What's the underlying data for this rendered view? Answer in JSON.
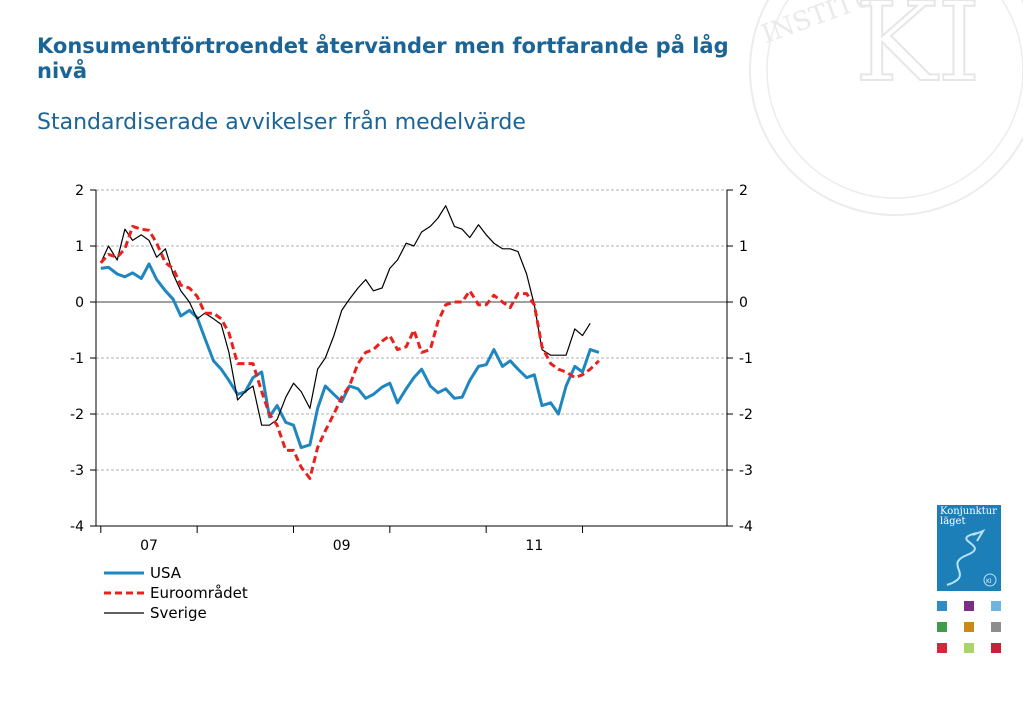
{
  "header": {
    "title": "Konsumentförtroendet återvänder men fortfarande på låg nivå",
    "subtitle": "Standardiserade avvikelser från medelvärde"
  },
  "seal": {
    "text": "INSTITUTET",
    "monogram": "KI"
  },
  "cover": {
    "title_line1": "Konjunktur",
    "title_line2": "läget",
    "badge": "KI"
  },
  "colors": {
    "title": "#1a6496",
    "usa": "#1f86c0",
    "euro": "#e8211d",
    "sverige": "#000000",
    "cover": "#1c7fb8",
    "squares": [
      "#2e8bc6",
      "#7b2e84",
      "#6fb4de",
      "#3f9d4a",
      "#c98a18",
      "#8d8d8d",
      "#d1283a",
      "#a9d36b",
      "#c62139"
    ]
  },
  "chart_data": {
    "type": "line",
    "xlabel": "",
    "ylabel": "",
    "xlim": [
      2006.45,
      2013.0
    ],
    "ylim": [
      -4,
      2
    ],
    "yticks": [
      -4,
      -3,
      -2,
      -1,
      0,
      1,
      2
    ],
    "ytick_labels": [
      "-4",
      "-3",
      "-2",
      "-1",
      "0",
      "1",
      "2"
    ],
    "xtick_labels": [
      {
        "x": 2007.0,
        "label": "07"
      },
      {
        "x": 2009.0,
        "label": "09"
      },
      {
        "x": 2011.0,
        "label": "11"
      }
    ],
    "grid": true,
    "secondary_y_axis": true,
    "legend_position": "bottom-left",
    "series": [
      {
        "name": "USA",
        "style": "solid-thick",
        "x": [
          2006.5,
          2006.58,
          2006.67,
          2006.75,
          2006.83,
          2006.92,
          2007.0,
          2007.08,
          2007.17,
          2007.25,
          2007.33,
          2007.42,
          2007.5,
          2007.58,
          2007.67,
          2007.75,
          2007.83,
          2007.92,
          2008.0,
          2008.08,
          2008.17,
          2008.25,
          2008.33,
          2008.42,
          2008.5,
          2008.58,
          2008.67,
          2008.75,
          2008.83,
          2008.92,
          2009.0,
          2009.08,
          2009.17,
          2009.25,
          2009.33,
          2009.42,
          2009.5,
          2009.58,
          2009.67,
          2009.75,
          2009.83,
          2009.92,
          2010.0,
          2010.08,
          2010.17,
          2010.25,
          2010.33,
          2010.42,
          2010.5,
          2010.58,
          2010.67,
          2010.75,
          2010.83,
          2010.92,
          2011.0,
          2011.08,
          2011.17,
          2011.25,
          2011.33,
          2011.42,
          2011.5,
          2011.58,
          2011.67,
          2011.75
        ],
        "values": [
          0.6,
          0.62,
          0.5,
          0.45,
          0.52,
          0.42,
          0.68,
          0.4,
          0.2,
          0.05,
          -0.25,
          -0.15,
          -0.28,
          -0.65,
          -1.05,
          -1.2,
          -1.4,
          -1.65,
          -1.6,
          -1.35,
          -1.25,
          -2.05,
          -1.85,
          -2.15,
          -2.2,
          -2.6,
          -2.55,
          -1.9,
          -1.5,
          -1.65,
          -1.78,
          -1.5,
          -1.55,
          -1.72,
          -1.65,
          -1.52,
          -1.45,
          -1.8,
          -1.55,
          -1.35,
          -1.2,
          -1.5,
          -1.62,
          -1.55,
          -1.72,
          -1.7,
          -1.4,
          -1.15,
          -1.12,
          -0.85,
          -1.15,
          -1.05,
          -1.2,
          -1.35,
          -1.3,
          -1.85,
          -1.8,
          -2.0,
          -1.5,
          -1.15,
          -1.25,
          -0.85,
          -0.9,
          null
        ]
      },
      {
        "name": "Euroområdet",
        "style": "dashed",
        "x": [
          2006.5,
          2006.58,
          2006.67,
          2006.75,
          2006.83,
          2006.92,
          2007.0,
          2007.08,
          2007.17,
          2007.25,
          2007.33,
          2007.42,
          2007.5,
          2007.58,
          2007.67,
          2007.75,
          2007.83,
          2007.92,
          2008.0,
          2008.08,
          2008.17,
          2008.25,
          2008.33,
          2008.42,
          2008.5,
          2008.58,
          2008.67,
          2008.75,
          2008.83,
          2008.92,
          2009.0,
          2009.08,
          2009.17,
          2009.25,
          2009.33,
          2009.42,
          2009.5,
          2009.58,
          2009.67,
          2009.75,
          2009.83,
          2009.92,
          2010.0,
          2010.08,
          2010.17,
          2010.25,
          2010.33,
          2010.42,
          2010.5,
          2010.58,
          2010.67,
          2010.75,
          2010.83,
          2010.92,
          2011.0,
          2011.08,
          2011.17,
          2011.25,
          2011.33,
          2011.42,
          2011.5,
          2011.58,
          2011.67,
          2011.75
        ],
        "values": [
          0.7,
          0.85,
          0.8,
          0.95,
          1.35,
          1.3,
          1.28,
          1.05,
          0.7,
          0.6,
          0.3,
          0.25,
          0.1,
          -0.2,
          -0.2,
          -0.3,
          -0.55,
          -1.1,
          -1.1,
          -1.1,
          -1.6,
          -2.0,
          -2.2,
          -2.65,
          -2.65,
          -2.95,
          -3.15,
          -2.6,
          -2.3,
          -2.0,
          -1.7,
          -1.5,
          -1.1,
          -0.9,
          -0.85,
          -0.7,
          -0.6,
          -0.85,
          -0.8,
          -0.5,
          -0.9,
          -0.85,
          -0.35,
          -0.05,
          0.0,
          0.0,
          0.2,
          -0.05,
          -0.05,
          0.12,
          0.0,
          -0.1,
          0.15,
          0.15,
          -0.05,
          -0.8,
          -1.1,
          -1.2,
          -1.25,
          -1.35,
          -1.3,
          -1.2,
          -1.05,
          null
        ]
      },
      {
        "name": "Sverige",
        "style": "solid-thin",
        "x": [
          2006.5,
          2006.58,
          2006.67,
          2006.75,
          2006.83,
          2006.92,
          2007.0,
          2007.08,
          2007.17,
          2007.25,
          2007.33,
          2007.42,
          2007.5,
          2007.58,
          2007.67,
          2007.75,
          2007.83,
          2007.92,
          2008.0,
          2008.08,
          2008.17,
          2008.25,
          2008.33,
          2008.42,
          2008.5,
          2008.58,
          2008.67,
          2008.75,
          2008.83,
          2008.92,
          2009.0,
          2009.08,
          2009.17,
          2009.25,
          2009.33,
          2009.42,
          2009.5,
          2009.58,
          2009.67,
          2009.75,
          2009.83,
          2009.92,
          2010.0,
          2010.08,
          2010.17,
          2010.25,
          2010.33,
          2010.42,
          2010.5,
          2010.58,
          2010.67,
          2010.75,
          2010.83,
          2010.92,
          2011.0,
          2011.08,
          2011.17,
          2011.25,
          2011.33,
          2011.42,
          2011.5,
          2011.58,
          2011.67,
          2011.75
        ],
        "values": [
          0.7,
          1.0,
          0.75,
          1.3,
          1.1,
          1.2,
          1.1,
          0.8,
          0.95,
          0.5,
          0.2,
          0.0,
          -0.3,
          -0.2,
          -0.3,
          -0.4,
          -0.9,
          -1.75,
          -1.6,
          -1.5,
          -2.2,
          -2.2,
          -2.1,
          -1.7,
          -1.45,
          -1.6,
          -1.9,
          -1.2,
          -1.0,
          -0.6,
          -0.15,
          0.05,
          0.25,
          0.4,
          0.2,
          0.25,
          0.6,
          0.75,
          1.05,
          1.0,
          1.25,
          1.35,
          1.5,
          1.72,
          1.35,
          1.3,
          1.15,
          1.38,
          1.2,
          1.05,
          0.95,
          0.95,
          0.9,
          0.5,
          -0.05,
          -0.85,
          -0.95,
          -0.95,
          -0.95,
          -0.48,
          -0.6,
          -0.38,
          null,
          null
        ]
      }
    ]
  }
}
